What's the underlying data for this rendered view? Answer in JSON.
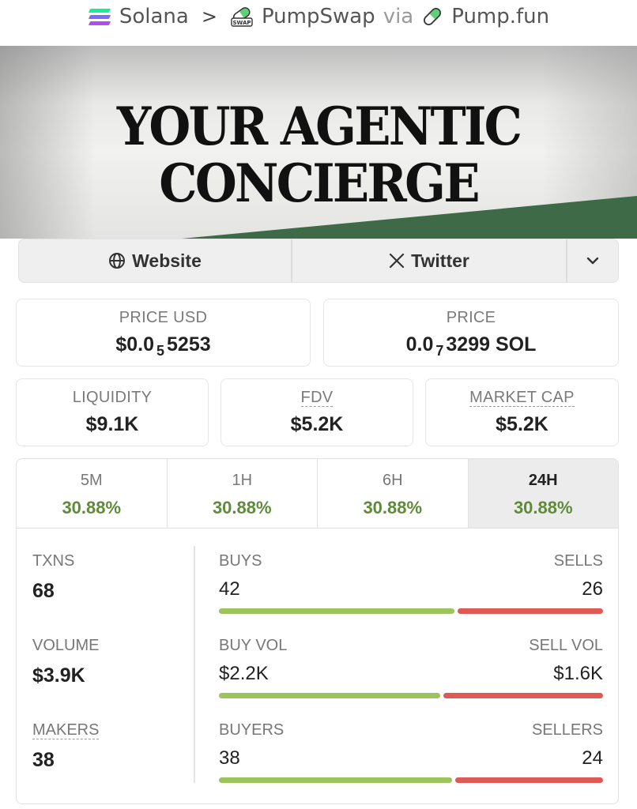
{
  "breadcrumb": {
    "chain": "Solana",
    "separator": ">",
    "dex": "PumpSwap",
    "dex_badge": "SWAP",
    "via": "via",
    "launchpad": "Pump.fun",
    "chain_icon": "solana-icon",
    "dex_icon": "pumpswap-icon",
    "launchpad_icon": "pill-icon"
  },
  "banner": {
    "line1": "YOUR AGENTIC",
    "line2": "CONCIERGE"
  },
  "links": {
    "website": "Website",
    "twitter": "Twitter",
    "more_icon": "chevron-down-icon"
  },
  "price_usd": {
    "label": "PRICE USD",
    "prefix": "$0.0",
    "zeros": "5",
    "digits": "5253"
  },
  "price_native": {
    "label": "PRICE",
    "prefix": "0.0",
    "zeros": "7",
    "digits": "3299 SOL"
  },
  "liquidity": {
    "label": "LIQUIDITY",
    "value": "$9.1K"
  },
  "fdv": {
    "label": "FDV",
    "value": "$5.2K"
  },
  "market_cap": {
    "label": "MARKET CAP",
    "value": "$5.2K"
  },
  "timeframes": [
    {
      "label": "5M",
      "change": "30.88%",
      "active": false
    },
    {
      "label": "1H",
      "change": "30.88%",
      "active": false
    },
    {
      "label": "6H",
      "change": "30.88%",
      "active": false
    },
    {
      "label": "24H",
      "change": "30.88%",
      "active": true
    }
  ],
  "txns": {
    "label": "TXNS",
    "value": "68",
    "buys_label": "BUYS",
    "buys": "42",
    "sells_label": "SELLS",
    "sells": "26",
    "buy_fraction": 0.618
  },
  "volume": {
    "label": "VOLUME",
    "value": "$3.9K",
    "buy_label": "BUY VOL",
    "buy": "$2.2K",
    "sell_label": "SELL VOL",
    "sell": "$1.6K",
    "buy_fraction": 0.58
  },
  "makers": {
    "label": "MAKERS",
    "value": "38",
    "buyers_label": "BUYERS",
    "buyers": "38",
    "sellers_label": "SELLERS",
    "sellers": "24",
    "buy_fraction": 0.613
  },
  "colors": {
    "positive": "#5f8a3a",
    "buy_bar": "#9dc35c",
    "sell_bar": "#de5a55"
  }
}
